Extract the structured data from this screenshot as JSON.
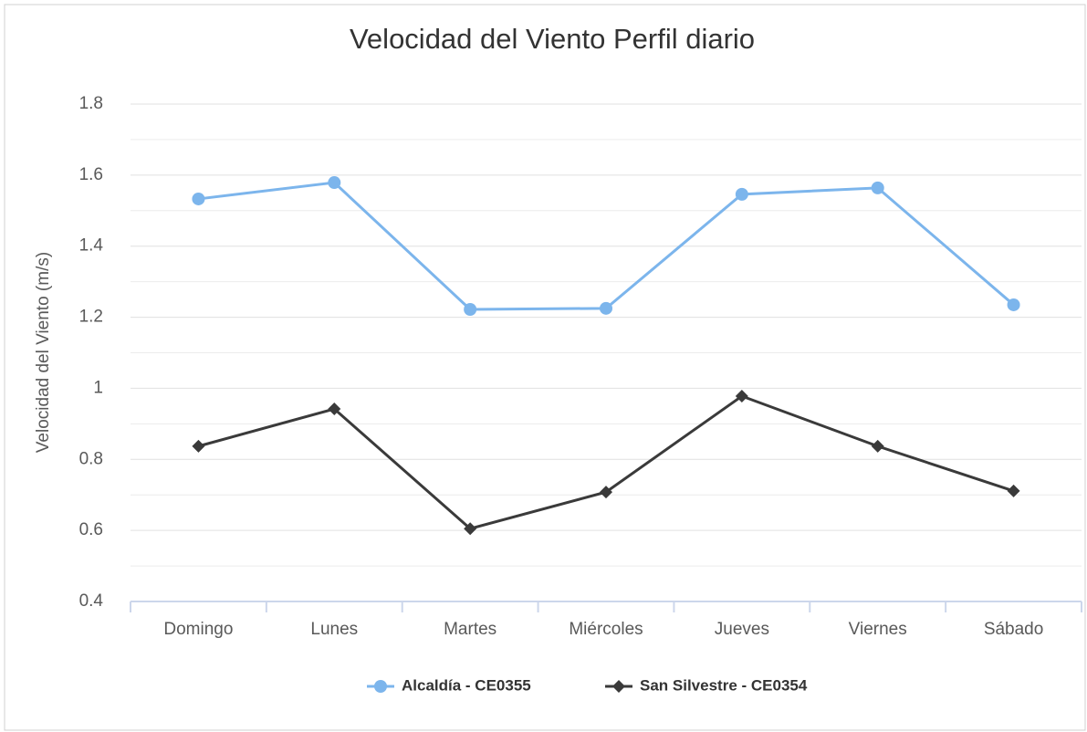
{
  "chart_data": {
    "type": "line",
    "title": "Velocidad del Viento Perfil diario",
    "y_label": "Velocidad del Viento (m/s)",
    "categories": [
      "Domingo",
      "Lunes",
      "Martes",
      "Miércoles",
      "Jueves",
      "Viernes",
      "Sábado"
    ],
    "series": [
      {
        "name": "Alcaldía - CE0355",
        "color": "#7cb5ec",
        "marker": "circle",
        "values": [
          1.533,
          1.579,
          1.222,
          1.225,
          1.546,
          1.564,
          1.235
        ]
      },
      {
        "name": "San Silvestre - CE0354",
        "color": "#3a3a3a",
        "marker": "diamond",
        "values": [
          0.837,
          0.942,
          0.605,
          0.708,
          0.978,
          0.837,
          0.711
        ]
      }
    ],
    "ylim": [
      0.4,
      1.8
    ],
    "yticks": [
      0.4,
      0.6,
      0.8,
      1,
      1.2,
      1.4,
      1.6,
      1.8
    ],
    "yminor": [
      0.5,
      0.7,
      0.9,
      1.1,
      1.3,
      1.5,
      1.7
    ],
    "grid": true,
    "legend": "bottom"
  }
}
